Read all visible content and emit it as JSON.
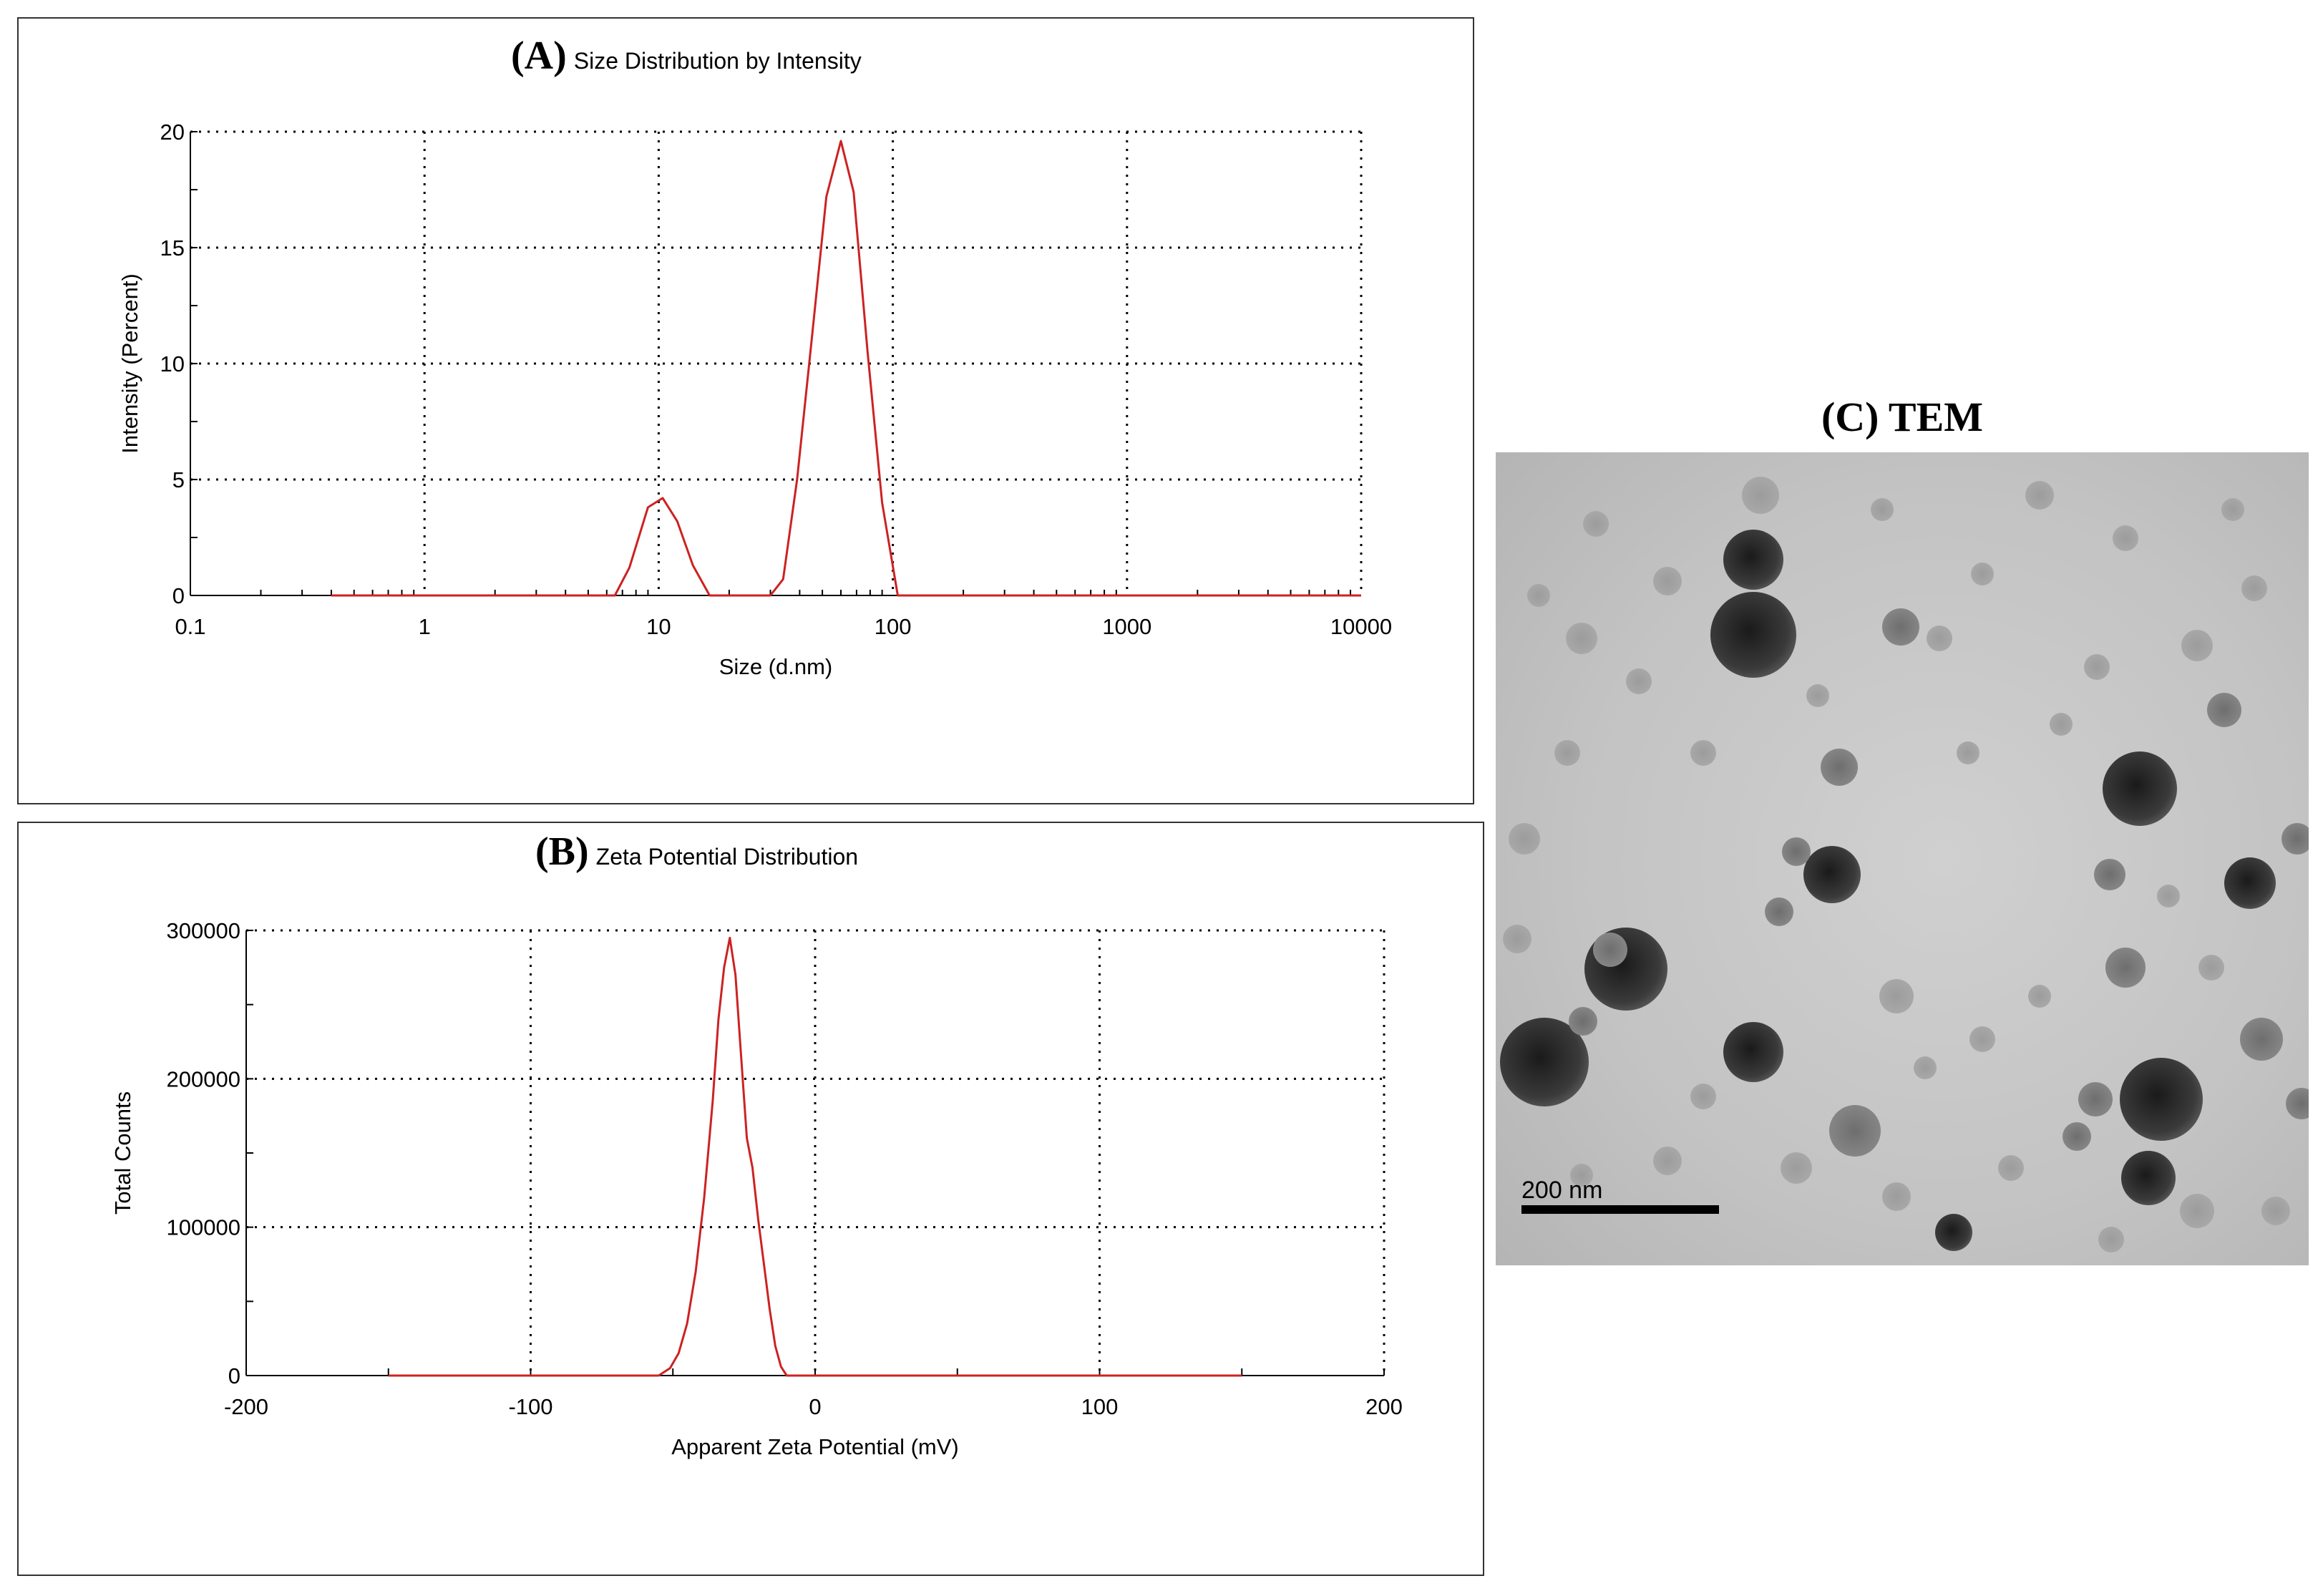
{
  "chart_data": [
    {
      "type": "line",
      "panel_label": "(A)",
      "title": "Size Distribution by Intensity",
      "xlabel": "Size (d.nm)",
      "ylabel": "Intensity (Percent)",
      "xscale": "log",
      "xlim": [
        0.1,
        10000
      ],
      "ylim": [
        0,
        20
      ],
      "grid": true,
      "x_ticks": [
        "0.1",
        "1",
        "10",
        "100",
        "1000",
        "10000"
      ],
      "x_tick_values": [
        0.1,
        1,
        10,
        100,
        1000,
        10000
      ],
      "y_ticks": [
        "0",
        "5",
        "10",
        "15",
        "20"
      ],
      "y_tick_values": [
        0,
        5,
        10,
        15,
        20
      ],
      "line_color": "#cc2222",
      "series": [
        {
          "x": [
            0.4,
            6.5,
            7.5,
            9.0,
            10.4,
            12.0,
            14.0,
            16.5,
            30.0,
            34.0,
            39.0,
            45.0,
            52.0,
            60.0,
            68.0,
            78.0,
            90.0,
            105.0,
            10000
          ],
          "y": [
            0,
            0,
            1.2,
            3.8,
            4.2,
            3.2,
            1.3,
            0,
            0,
            0.7,
            5.0,
            11.0,
            17.2,
            19.6,
            17.4,
            10.5,
            4.0,
            0,
            0
          ]
        }
      ]
    },
    {
      "type": "line",
      "panel_label": "(B)",
      "title": "Zeta Potential Distribution",
      "xlabel": "Apparent Zeta Potential (mV)",
      "ylabel": "Total Counts",
      "xlim": [
        -200,
        200
      ],
      "ylim": [
        0,
        300000
      ],
      "grid": true,
      "x_ticks": [
        "-200",
        "-100",
        "0",
        "100",
        "200"
      ],
      "x_tick_values": [
        -200,
        -100,
        0,
        100,
        200
      ],
      "y_ticks": [
        "0",
        "100000",
        "200000",
        "300000"
      ],
      "y_tick_values": [
        0,
        100000,
        200000,
        300000
      ],
      "line_color": "#cc2222",
      "series": [
        {
          "x": [
            -150,
            -55,
            -51,
            -48,
            -45,
            -42,
            -39,
            -36,
            -34,
            -32,
            -30,
            -28,
            -26,
            -24,
            -22,
            -20,
            -18,
            -16,
            -14,
            -12,
            -10,
            150
          ],
          "y": [
            0,
            0,
            5000,
            15000,
            35000,
            70000,
            120000,
            185000,
            240000,
            275000,
            295000,
            270000,
            215000,
            160000,
            140000,
            105000,
            75000,
            45000,
            20000,
            6000,
            0,
            0
          ]
        }
      ]
    }
  ],
  "tem": {
    "title": "(C) TEM",
    "scale_bar_label": "200 nm"
  }
}
